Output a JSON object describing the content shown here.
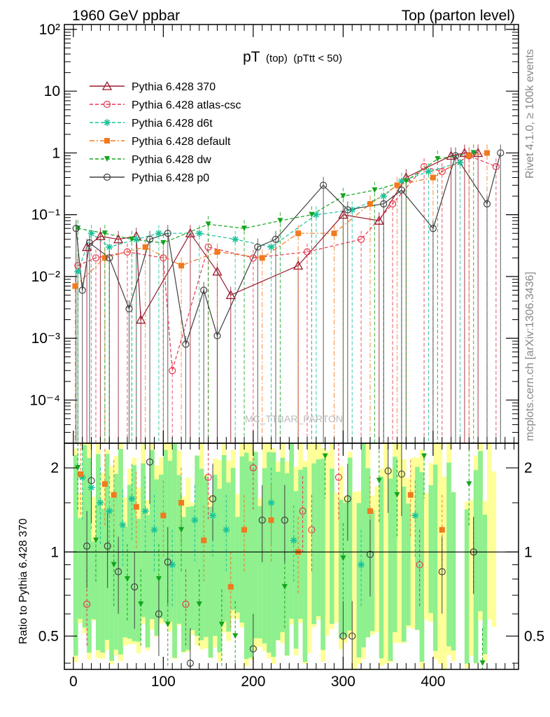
{
  "header": {
    "left": "1960 GeV ppbar",
    "right": "Top (parton level)"
  },
  "plot_title": {
    "main": "pT",
    "sub1": "(top)",
    "sub2": "(pTtt < 50)"
  },
  "watermark": "MC_TTBAR_PARTON",
  "side_labels": {
    "rivet": "Rivet 4.1.0, ≥ 100k events",
    "mcplots": "mcplots.cern.ch [arXiv:1306.3436]"
  },
  "ratio_ylabel": "Ratio to Pythia 6.428 370",
  "colors": {
    "p370": "#9b1b2f",
    "atlas": "#e6364f",
    "d6t": "#19c39a",
    "default": "#f07a1e",
    "dw": "#13a51d",
    "p0": "#404040",
    "band_green": "#8ef08e",
    "band_yellow": "#ffff99"
  },
  "chart_data": [
    {
      "type": "line",
      "title": "pT (top) (pTtt < 50)",
      "xlabel": "",
      "ylabel": "",
      "yscale": "log",
      "xlim": [
        -10,
        495
      ],
      "ylim": [
        2e-05,
        120
      ],
      "y_ticks": [
        {
          "value": 0.0001,
          "label": "10⁻⁴"
        },
        {
          "value": 0.001,
          "label": "10⁻³"
        },
        {
          "value": 0.01,
          "label": "10⁻²"
        },
        {
          "value": 0.1,
          "label": "10⁻¹"
        },
        {
          "value": 1,
          "label": "1"
        },
        {
          "value": 10,
          "label": "10"
        },
        {
          "value": 100,
          "label": "10²"
        }
      ],
      "legend_position": "top-left",
      "series": [
        {
          "name": "Pythia 6.428 370",
          "key": "p370",
          "marker": "triangle-open",
          "dash": "solid",
          "x": [
            15,
            30,
            50,
            70,
            75,
            130,
            160,
            175,
            250,
            300,
            340,
            370,
            420,
            435,
            450
          ],
          "y": [
            0.03,
            0.045,
            0.04,
            0.045,
            0.002,
            0.05,
            0.012,
            0.005,
            0.015,
            0.1,
            0.08,
            0.4,
            0.9,
            1.0,
            1.0
          ]
        },
        {
          "name": "Pythia 6.428 atlas-csc",
          "key": "atlas",
          "marker": "circle-open",
          "dash": "dashed",
          "x": [
            5,
            25,
            60,
            100,
            110,
            150,
            200,
            260,
            320,
            355,
            390,
            410,
            440,
            470
          ],
          "y": [
            0.015,
            0.02,
            0.025,
            0.02,
            0.0003,
            0.03,
            0.02,
            0.025,
            0.04,
            0.15,
            0.6,
            0.5,
            0.9,
            0.6
          ]
        },
        {
          "name": "Pythia 6.428 d6t",
          "key": "d6t",
          "marker": "star",
          "dash": "dashed",
          "x": [
            5,
            20,
            40,
            70,
            95,
            140,
            180,
            220,
            270,
            310,
            345,
            365,
            395,
            430
          ],
          "y": [
            0.012,
            0.05,
            0.03,
            0.04,
            0.05,
            0.05,
            0.04,
            0.03,
            0.1,
            0.12,
            0.2,
            0.35,
            0.5,
            0.7
          ]
        },
        {
          "name": "Pythia 6.428 default",
          "key": "default",
          "marker": "square",
          "dash": "dashdot",
          "x": [
            2,
            35,
            80,
            120,
            160,
            210,
            250,
            290,
            330,
            360,
            400,
            440,
            460
          ],
          "y": [
            0.007,
            0.02,
            0.03,
            0.015,
            0.025,
            0.02,
            0.05,
            0.05,
            0.15,
            0.3,
            0.4,
            0.9,
            1.0
          ]
        },
        {
          "name": "Pythia 6.428 dw",
          "key": "dw",
          "marker": "triangle-down",
          "dash": "dashed",
          "x": [
            5,
            35,
            65,
            100,
            150,
            190,
            230,
            265,
            300,
            335,
            370,
            405,
            445
          ],
          "y": [
            0.06,
            0.05,
            0.04,
            0.035,
            0.07,
            0.06,
            0.08,
            0.1,
            0.2,
            0.25,
            0.35,
            0.8,
            1.0
          ]
        },
        {
          "name": "Pythia 6.428 p0",
          "key": "p0",
          "marker": "circle-open",
          "dash": "solid",
          "x": [
            3,
            10,
            18,
            40,
            62,
            85,
            105,
            125,
            145,
            160,
            205,
            225,
            278,
            305,
            345,
            365,
            400,
            425,
            460,
            475
          ],
          "y": [
            0.06,
            0.006,
            0.035,
            0.02,
            0.003,
            0.04,
            0.05,
            0.0008,
            0.006,
            0.0011,
            0.03,
            0.04,
            0.3,
            0.12,
            0.15,
            0.25,
            0.06,
            0.9,
            0.15,
            1.0
          ]
        }
      ]
    },
    {
      "type": "line",
      "title": "",
      "xlabel": "",
      "ylabel": "Ratio to Pythia 6.428 370",
      "yscale": "log",
      "xlim": [
        -10,
        495
      ],
      "ylim": [
        0.38,
        2.45
      ],
      "x_ticks": [
        0,
        100,
        200,
        300,
        400
      ],
      "y_ticks": [
        {
          "value": 0.5,
          "label": "0.5"
        },
        {
          "value": 1,
          "label": "1"
        },
        {
          "value": 2,
          "label": "2"
        }
      ],
      "reference_line": 1,
      "series": [
        {
          "name": "Pythia 6.428 atlas-csc",
          "key": "atlas",
          "marker": "circle-open",
          "x": [
            15,
            125,
            150,
            200,
            255,
            265,
            295,
            385,
            445
          ],
          "y": [
            0.65,
            0.65,
            1.85,
            2.0,
            1.4,
            1.2,
            1.85,
            0.9,
            1.0
          ]
        },
        {
          "name": "Pythia 6.428 d6t",
          "key": "d6t",
          "marker": "star",
          "x": [
            10,
            20,
            30,
            40,
            55,
            65,
            80,
            90,
            110,
            135,
            155,
            170,
            220,
            245,
            320,
            380
          ],
          "y": [
            1.85,
            1.7,
            1.5,
            1.4,
            1.25,
            1.55,
            1.4,
            1.2,
            0.9,
            1.3,
            1.35,
            1.2,
            1.5,
            1.1,
            0.9,
            1.35
          ]
        },
        {
          "name": "Pythia 6.428 default",
          "key": "default",
          "marker": "square",
          "x": [
            8,
            35,
            45,
            70,
            100,
            120,
            145,
            175,
            190,
            220,
            250,
            330,
            375,
            410
          ],
          "y": [
            1.9,
            1.75,
            1.6,
            1.45,
            1.35,
            1.5,
            1.1,
            0.75,
            1.2,
            1.3,
            1.0,
            1.4,
            1.6,
            1.2
          ]
        },
        {
          "name": "Pythia 6.428 dw",
          "key": "dw",
          "marker": "triangle-down",
          "x": [
            5,
            25,
            45,
            60,
            75,
            95,
            105,
            120,
            140,
            165,
            180,
            235,
            280,
            300,
            340,
            360,
            390,
            440,
            455
          ],
          "y": [
            2.0,
            1.1,
            0.9,
            0.8,
            0.65,
            0.8,
            0.55,
            1.2,
            0.65,
            0.55,
            0.5,
            0.75,
            2.2,
            0.95,
            1.8,
            1.6,
            2.2,
            1.75,
            0.4
          ]
        },
        {
          "name": "Pythia 6.428 p0",
          "key": "p0",
          "marker": "circle-open",
          "x": [
            15,
            20,
            38,
            50,
            68,
            85,
            95,
            105,
            130,
            155,
            200,
            210,
            235,
            300,
            305,
            310,
            330,
            350,
            365,
            410,
            445
          ],
          "y": [
            1.05,
            1.8,
            1.05,
            0.85,
            0.75,
            2.1,
            0.6,
            0.92,
            0.4,
            1.55,
            0.45,
            1.3,
            1.3,
            0.5,
            1.55,
            0.5,
            0.98,
            1.95,
            1.9,
            0.85,
            1.0
          ]
        }
      ]
    }
  ]
}
